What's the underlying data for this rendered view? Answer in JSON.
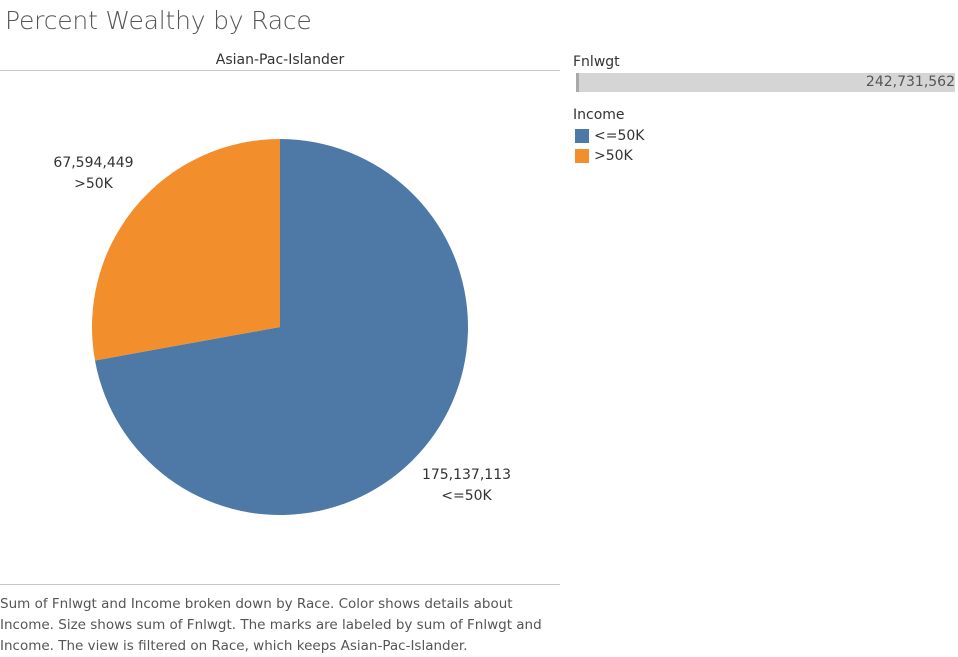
{
  "page": {
    "title": "Percent Wealthy by Race",
    "pane_header": "Asian-Pac-Islander",
    "caption": "Sum of Fnlwgt and Income broken down by Race.  Color shows details about Income.  Size shows sum of Fnlwgt.  The marks are labeled by sum of Fnlwgt and Income. The view is filtered on Race, which keeps Asian-Pac-Islander."
  },
  "size_legend": {
    "title": "Fnlwgt",
    "value": "242,731,562"
  },
  "color_legend": {
    "title": "Income",
    "items": [
      {
        "label": "<=50K",
        "color": "#4e79a7"
      },
      {
        "label": ">50K",
        "color": "#f28e2b"
      }
    ]
  },
  "chart_data": {
    "type": "pie",
    "title": "Asian-Pac-Islander",
    "slices": [
      {
        "label": "<=50K",
        "value": 175137113,
        "value_label": "175,137,113",
        "color": "#4e79a7"
      },
      {
        "label": ">50K",
        "value": 67594449,
        "value_label": "67,594,449",
        "color": "#f28e2b"
      }
    ]
  }
}
